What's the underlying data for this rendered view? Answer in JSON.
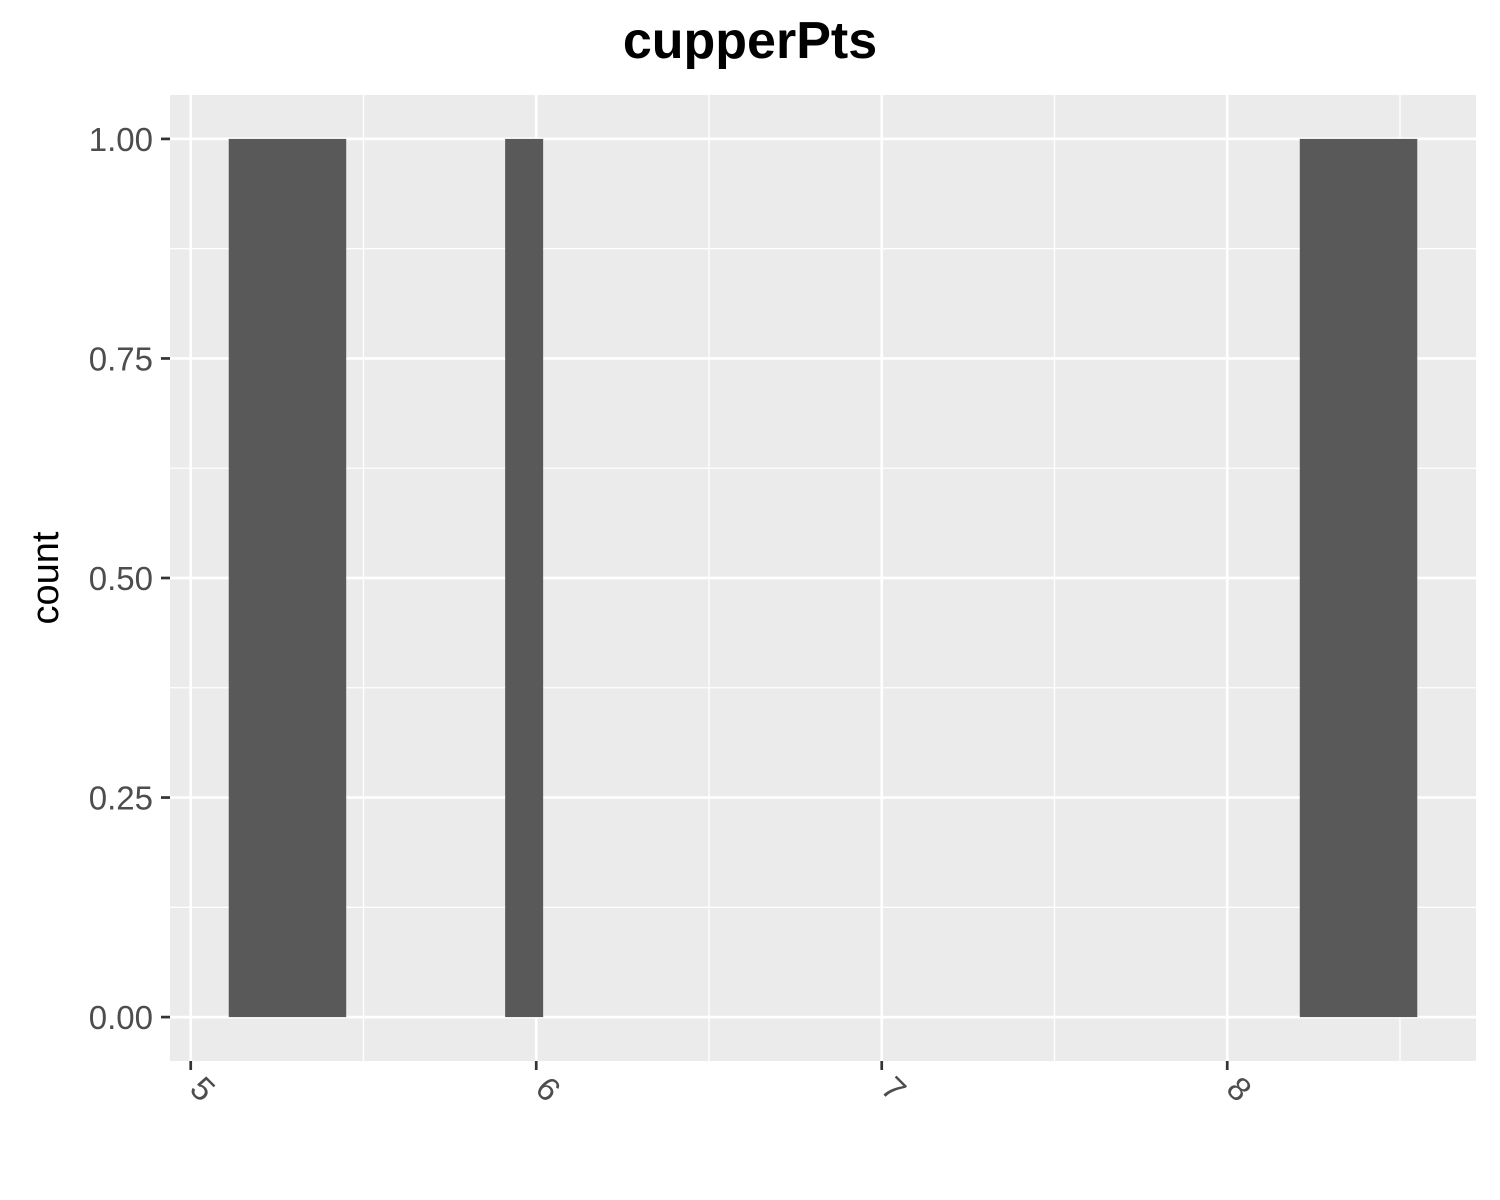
{
  "chart_data": {
    "type": "bar",
    "title": "cupperPts",
    "xlabel": "",
    "ylabel": "count",
    "xlim": [
      4.94,
      8.72
    ],
    "ylim": [
      -0.05,
      1.05
    ],
    "x_ticks": [
      5,
      6,
      7,
      8
    ],
    "x_tick_labels": [
      "5",
      "6",
      "7",
      "8"
    ],
    "x_tick_rotation_deg": 45,
    "y_ticks": [
      0,
      0.25,
      0.5,
      0.75,
      1
    ],
    "y_tick_labels": [
      "0.00",
      "0.25",
      "0.50",
      "0.75",
      "1.00"
    ],
    "bars": [
      {
        "xmin": 5.11,
        "xmax": 5.45,
        "count": 1
      },
      {
        "xmin": 5.91,
        "xmax": 6.02,
        "count": 1
      },
      {
        "xmin": 8.21,
        "xmax": 8.55,
        "count": 1
      }
    ],
    "grid": true,
    "colors": {
      "panel_background": "#ebebeb",
      "grid": "#ffffff",
      "bar_fill": "#595959",
      "tick": "#333333"
    }
  }
}
